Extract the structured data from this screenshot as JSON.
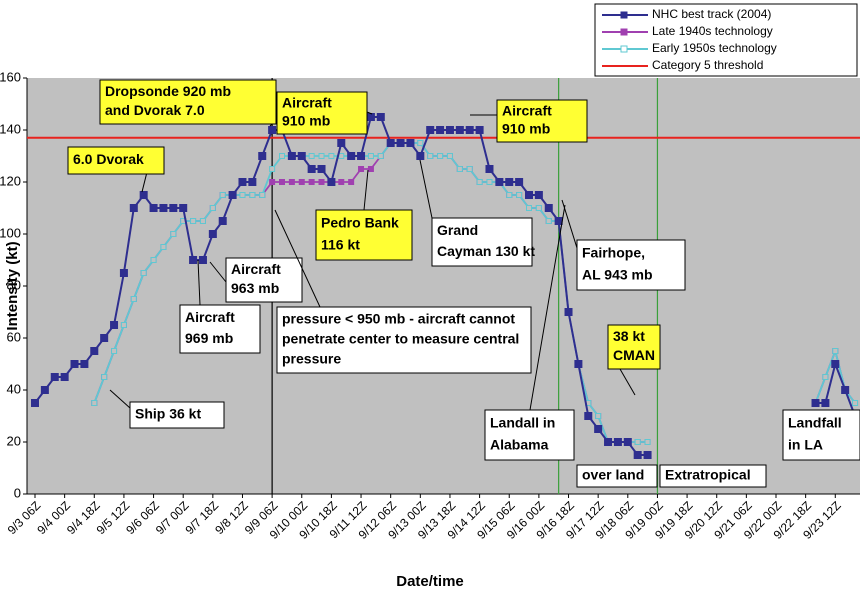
{
  "chart_data": {
    "type": "line",
    "y_label": "Intensity (kt)",
    "x_label": "Date/time",
    "categories": [
      "9/3 06Z",
      null,
      null,
      "9/4 00Z",
      null,
      null,
      "9/4 18Z",
      null,
      null,
      "9/5 12Z",
      null,
      null,
      "9/6 06Z",
      null,
      null,
      "9/7 00Z",
      null,
      null,
      "9/7 18Z",
      null,
      null,
      "9/8 12Z",
      null,
      null,
      "9/9 06Z",
      null,
      null,
      "9/10 00Z",
      null,
      null,
      "9/10 18Z",
      null,
      null,
      "9/11 12Z",
      null,
      null,
      "9/12 06Z",
      null,
      null,
      "9/13 00Z",
      null,
      null,
      "9/13 18Z",
      null,
      null,
      "9/14 12Z",
      null,
      null,
      "9/15 06Z",
      null,
      null,
      "9/16 00Z",
      null,
      null,
      "9/16 18Z",
      null,
      null,
      "9/17 12Z",
      null,
      null,
      "9/18 06Z",
      null,
      null,
      "9/19 00Z",
      null,
      null,
      "9/19 18Z",
      null,
      null,
      "9/20 12Z",
      null,
      null,
      "9/21 06Z",
      null,
      null,
      "9/22 00Z",
      null,
      null,
      "9/22 18Z",
      null,
      null,
      "9/23 12Z",
      null,
      null
    ],
    "series": [
      {
        "name": "NHC best track (2004)",
        "color": "#2e2e8f",
        "marker": "filled",
        "values": [
          35,
          40,
          45,
          45,
          50,
          50,
          55,
          60,
          65,
          85,
          110,
          115,
          110,
          110,
          110,
          110,
          90,
          90,
          100,
          105,
          115,
          120,
          120,
          130,
          140,
          140,
          130,
          130,
          125,
          125,
          120,
          135,
          130,
          130,
          145,
          145,
          135,
          135,
          135,
          130,
          140,
          140,
          140,
          140,
          140,
          140,
          125,
          120,
          120,
          120,
          115,
          115,
          110,
          105,
          70,
          50,
          30,
          25,
          20,
          20,
          20,
          15,
          15,
          null,
          null,
          null,
          null,
          null,
          null,
          null,
          null,
          null,
          null,
          null,
          null,
          null,
          null,
          null,
          null,
          35,
          35,
          50,
          40,
          30
        ]
      },
      {
        "name": "Late 1940s technology",
        "color": "#a040b0",
        "marker": "filled",
        "values": [
          null,
          null,
          null,
          null,
          null,
          null,
          35,
          45,
          55,
          65,
          75,
          85,
          90,
          95,
          100,
          105,
          105,
          105,
          110,
          115,
          115,
          115,
          115,
          115,
          120,
          120,
          120,
          120,
          120,
          120,
          120,
          120,
          120,
          125,
          125,
          130,
          135,
          135,
          135,
          135,
          130,
          130,
          130,
          125,
          125,
          120,
          120,
          120,
          115,
          115,
          110,
          110,
          105,
          105,
          70,
          50,
          35,
          30,
          20,
          20,
          20,
          20,
          20,
          null,
          null,
          null,
          null,
          null,
          null,
          null,
          null,
          null,
          null,
          null,
          null,
          null,
          null,
          null,
          null,
          35,
          45,
          55,
          40,
          35
        ]
      },
      {
        "name": "Early 1950s technology",
        "color": "#5fc8d2",
        "marker": "hollow",
        "values": [
          null,
          null,
          null,
          null,
          null,
          null,
          35,
          45,
          55,
          65,
          75,
          85,
          90,
          95,
          100,
          105,
          105,
          105,
          110,
          115,
          115,
          115,
          115,
          115,
          125,
          130,
          130,
          130,
          130,
          130,
          130,
          130,
          130,
          130,
          130,
          130,
          135,
          135,
          135,
          135,
          130,
          130,
          130,
          125,
          125,
          120,
          120,
          120,
          115,
          115,
          110,
          110,
          105,
          105,
          70,
          50,
          35,
          30,
          20,
          20,
          20,
          20,
          20,
          null,
          null,
          null,
          null,
          null,
          null,
          null,
          null,
          null,
          null,
          null,
          null,
          null,
          null,
          null,
          null,
          35,
          45,
          55,
          40,
          35
        ]
      }
    ],
    "threshold": {
      "name": "Category 5 threshold",
      "value": 137,
      "color": "#e8231e"
    },
    "vlines": [
      {
        "at": 24,
        "color": "#000000"
      },
      {
        "at": 53,
        "color": "#3aa03a"
      },
      {
        "at": 63,
        "color": "#3aa03a"
      }
    ],
    "ylim": [
      0,
      160
    ],
    "yticks": [
      0,
      20,
      40,
      60,
      80,
      100,
      120,
      140,
      160
    ],
    "grid": false,
    "legend": "top-right",
    "annotations": [
      {
        "lines": [
          "Dropsonde 920 mb",
          "and Dvorak 7.0"
        ],
        "fill": "#ffff33"
      },
      {
        "lines": [
          "6.0 Dvorak"
        ],
        "fill": "#ffff33"
      },
      {
        "lines": [
          "Aircraft",
          "910 mb"
        ],
        "fill": "#ffff33"
      },
      {
        "lines": [
          "Aircraft",
          "910 mb"
        ],
        "fill": "#ffff33"
      },
      {
        "lines": [
          "Aircraft",
          "963 mb"
        ],
        "fill": "#ffffff"
      },
      {
        "lines": [
          "Aircraft",
          "969 mb"
        ],
        "fill": "#ffffff"
      },
      {
        "lines": [
          "Pedro Bank",
          "116 kt"
        ],
        "fill": "#ffff33"
      },
      {
        "lines": [
          "Grand",
          "Cayman 130 kt"
        ],
        "fill": "#ffffff"
      },
      {
        "lines": [
          "Fairhope,",
          "AL 943 mb"
        ],
        "fill": "#ffffff"
      },
      {
        "lines": [
          "pressure < 950 mb - aircraft cannot",
          "penetrate center to measure central",
          "pressure"
        ],
        "fill": "#ffffff"
      },
      {
        "lines": [
          "38 kt",
          "CMAN"
        ],
        "fill": "#ffff33"
      },
      {
        "lines": [
          "Ship 36 kt"
        ],
        "fill": "#ffffff"
      },
      {
        "lines": [
          "Landall in",
          "Alabama"
        ],
        "fill": "#ffffff"
      },
      {
        "lines": [
          "over land"
        ],
        "fill": "#ffffff"
      },
      {
        "lines": [
          "Extratropical"
        ],
        "fill": "#ffffff"
      },
      {
        "lines": [
          "Landfall",
          "in LA"
        ],
        "fill": "#ffffff"
      }
    ]
  }
}
